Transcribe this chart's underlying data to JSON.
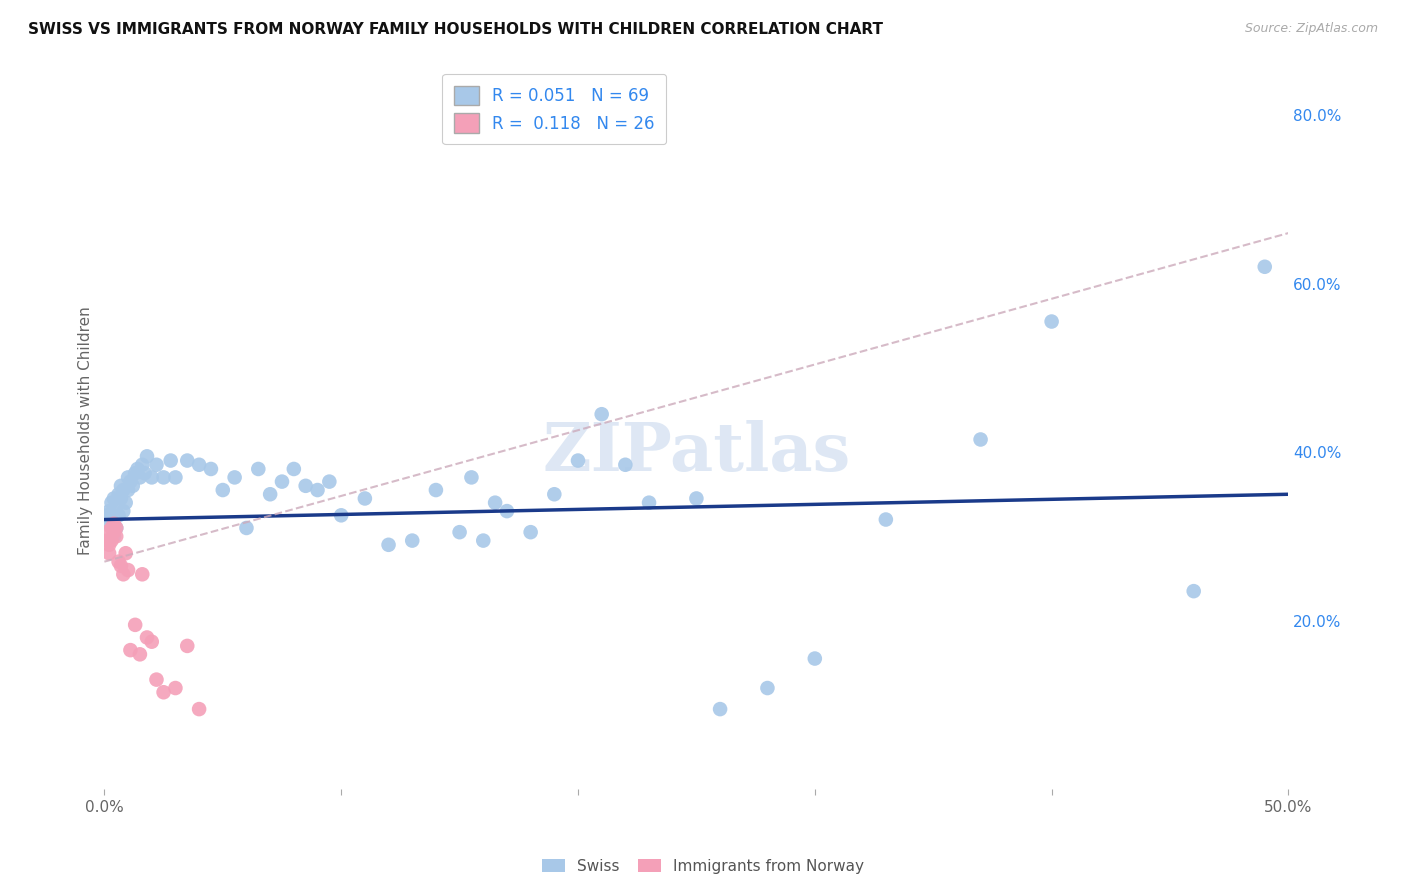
{
  "title": "SWISS VS IMMIGRANTS FROM NORWAY FAMILY HOUSEHOLDS WITH CHILDREN CORRELATION CHART",
  "source": "Source: ZipAtlas.com",
  "ylabel": "Family Households with Children",
  "xlim": [
    0.0,
    0.5
  ],
  "ylim": [
    0.0,
    0.85
  ],
  "xticks": [
    0.0,
    0.1,
    0.2,
    0.3,
    0.4,
    0.5
  ],
  "xticklabels": [
    "0.0%",
    "",
    "",
    "",
    "",
    "50.0%"
  ],
  "ytick_right": [
    0.2,
    0.4,
    0.6,
    0.8
  ],
  "yticklabels_right": [
    "20.0%",
    "40.0%",
    "60.0%",
    "80.0%"
  ],
  "swiss_R": 0.051,
  "swiss_N": 69,
  "norway_R": 0.118,
  "norway_N": 26,
  "swiss_color": "#a8c8e8",
  "norway_color": "#f4a0b8",
  "swiss_line_color": "#1a3a8a",
  "norway_line_color": "#c87890",
  "norway_line_dash": "--",
  "legend_text_color": "#3388ee",
  "swiss_x": [
    0.001,
    0.002,
    0.002,
    0.003,
    0.003,
    0.004,
    0.004,
    0.005,
    0.005,
    0.006,
    0.006,
    0.007,
    0.007,
    0.008,
    0.008,
    0.009,
    0.01,
    0.01,
    0.011,
    0.012,
    0.013,
    0.014,
    0.015,
    0.016,
    0.017,
    0.018,
    0.02,
    0.022,
    0.025,
    0.028,
    0.03,
    0.035,
    0.04,
    0.045,
    0.05,
    0.055,
    0.06,
    0.065,
    0.07,
    0.075,
    0.08,
    0.085,
    0.09,
    0.095,
    0.1,
    0.11,
    0.12,
    0.13,
    0.14,
    0.15,
    0.155,
    0.16,
    0.165,
    0.17,
    0.18,
    0.19,
    0.2,
    0.21,
    0.22,
    0.23,
    0.25,
    0.26,
    0.28,
    0.3,
    0.33,
    0.37,
    0.4,
    0.46,
    0.49
  ],
  "swiss_y": [
    0.325,
    0.315,
    0.33,
    0.32,
    0.34,
    0.3,
    0.345,
    0.335,
    0.31,
    0.35,
    0.325,
    0.36,
    0.345,
    0.355,
    0.33,
    0.34,
    0.37,
    0.355,
    0.365,
    0.36,
    0.375,
    0.38,
    0.37,
    0.385,
    0.375,
    0.395,
    0.37,
    0.385,
    0.37,
    0.39,
    0.37,
    0.39,
    0.385,
    0.38,
    0.355,
    0.37,
    0.31,
    0.38,
    0.35,
    0.365,
    0.38,
    0.36,
    0.355,
    0.365,
    0.325,
    0.345,
    0.29,
    0.295,
    0.355,
    0.305,
    0.37,
    0.295,
    0.34,
    0.33,
    0.305,
    0.35,
    0.39,
    0.445,
    0.385,
    0.34,
    0.345,
    0.095,
    0.12,
    0.155,
    0.32,
    0.415,
    0.555,
    0.235,
    0.62
  ],
  "norway_x": [
    0.001,
    0.001,
    0.002,
    0.002,
    0.003,
    0.003,
    0.004,
    0.004,
    0.005,
    0.005,
    0.006,
    0.007,
    0.008,
    0.009,
    0.01,
    0.011,
    0.013,
    0.015,
    0.016,
    0.018,
    0.02,
    0.022,
    0.025,
    0.03,
    0.035,
    0.04
  ],
  "norway_y": [
    0.295,
    0.305,
    0.29,
    0.28,
    0.31,
    0.295,
    0.315,
    0.305,
    0.3,
    0.31,
    0.27,
    0.265,
    0.255,
    0.28,
    0.26,
    0.165,
    0.195,
    0.16,
    0.255,
    0.18,
    0.175,
    0.13,
    0.115,
    0.12,
    0.17,
    0.095
  ],
  "background_color": "#ffffff",
  "grid_color": "#dddddd",
  "watermark_color": "#c8d8ee",
  "watermark_alpha": 0.6
}
